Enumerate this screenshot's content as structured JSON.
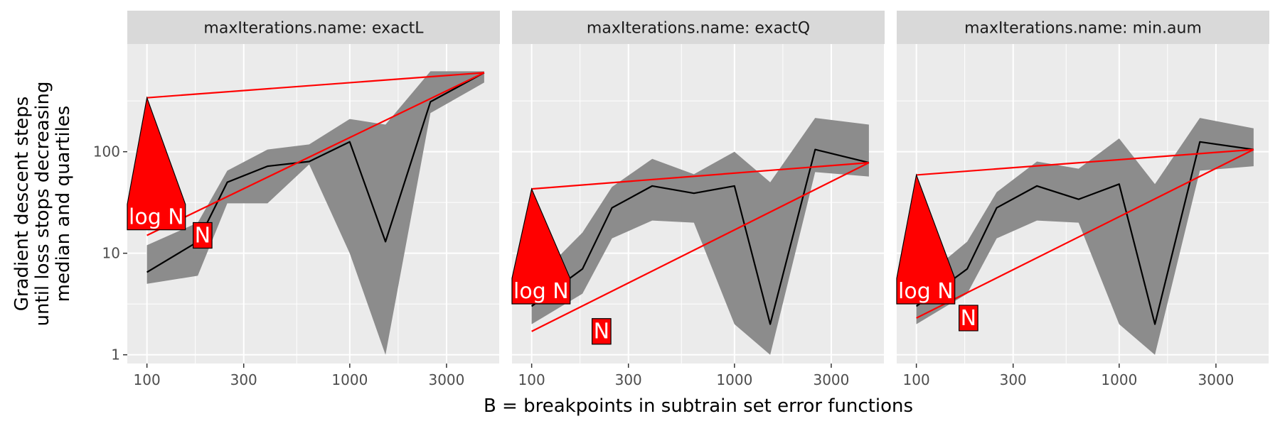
{
  "chart_data": {
    "type": "line",
    "xlabel": "B = breakpoints in subtrain set error functions",
    "ylabel_lines": [
      "Gradient descent steps",
      "until loss stops decreasing",
      "median and quartiles"
    ],
    "x_scale": "log",
    "y_scale": "log",
    "xlim": [
      80,
      5500
    ],
    "ylim": [
      0.82,
      1150
    ],
    "x_ticks": [
      {
        "value": 100,
        "label": "100"
      },
      {
        "value": 300,
        "label": "300"
      },
      {
        "value": 1000,
        "label": "1000"
      },
      {
        "value": 3000,
        "label": "3000"
      }
    ],
    "y_ticks": [
      {
        "value": 1,
        "label": "1"
      },
      {
        "value": 10,
        "label": "10"
      },
      {
        "value": 100,
        "label": "100"
      }
    ],
    "facet_strip_prefix": "maxIterations.name: ",
    "colors": {
      "panel_bg": "#ebebeb",
      "grid": "#ffffff",
      "strip_bg": "#d9d9d9",
      "ribbon": "#8c8c8c",
      "median_line": "#000000",
      "fit_line": "#ff0000",
      "label_fill": "#ff0000",
      "label_text": "#ffffff"
    },
    "panels": [
      {
        "name": "exactL",
        "x": [
          100,
          178,
          249,
          393,
          631,
          1000,
          1500,
          2500,
          4600
        ],
        "median": [
          6.5,
          13,
          50,
          72,
          80,
          125,
          13,
          310,
          600
        ],
        "q25": [
          5,
          6,
          31,
          31,
          75,
          10,
          1,
          240,
          480
        ],
        "q75": [
          12,
          20,
          65,
          105,
          118,
          210,
          185,
          620,
          620
        ],
        "fit_lines": [
          {
            "label": "log N",
            "x1": 100,
            "y1": 340,
            "x2": 4600,
            "y2": 600
          },
          {
            "label": "N",
            "x1": 100,
            "y1": 15,
            "x2": 4600,
            "y2": 600
          }
        ]
      },
      {
        "name": "exactQ",
        "x": [
          100,
          178,
          249,
          393,
          631,
          1000,
          1500,
          2500,
          4600
        ],
        "median": [
          3,
          7,
          28,
          46,
          39,
          46,
          2,
          105,
          78
        ],
        "q25": [
          2,
          4,
          14,
          21,
          20,
          2,
          1,
          63,
          57
        ],
        "q75": [
          5,
          16,
          45,
          85,
          60,
          100,
          50,
          215,
          185
        ],
        "fit_lines": [
          {
            "label": "log N",
            "x1": 100,
            "y1": 43,
            "x2": 4600,
            "y2": 78
          },
          {
            "label": "N",
            "x1": 100,
            "y1": 1.7,
            "x2": 4600,
            "y2": 78
          }
        ]
      },
      {
        "name": "min.aum",
        "x": [
          100,
          178,
          249,
          393,
          631,
          1000,
          1500,
          2500,
          4600
        ],
        "median": [
          3,
          7,
          28,
          46,
          34,
          48,
          2,
          125,
          105
        ],
        "q25": [
          2,
          4,
          14,
          21,
          20,
          2,
          1,
          65,
          72
        ],
        "q75": [
          5,
          13,
          40,
          80,
          68,
          135,
          48,
          215,
          170
        ],
        "fit_lines": [
          {
            "label": "log N",
            "x1": 100,
            "y1": 59,
            "x2": 4600,
            "y2": 105
          },
          {
            "label": "N",
            "x1": 100,
            "y1": 2.3,
            "x2": 4600,
            "y2": 105
          }
        ]
      }
    ]
  }
}
